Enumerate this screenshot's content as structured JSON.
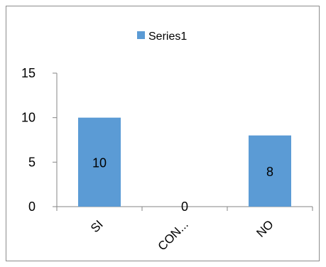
{
  "chart_data": {
    "type": "bar",
    "categories": [
      "SI",
      "CON...",
      "NO"
    ],
    "series": [
      {
        "name": "Series1",
        "values": [
          10,
          0,
          8
        ],
        "color": "#5b9bd5"
      }
    ],
    "data_labels": [
      "10",
      "0",
      "8"
    ],
    "ylim": [
      0,
      15
    ],
    "yticks": [
      0,
      5,
      10,
      15
    ],
    "ytick_labels": [
      "0",
      "5",
      "10",
      "15"
    ],
    "legend_position": "top",
    "grid": false
  }
}
